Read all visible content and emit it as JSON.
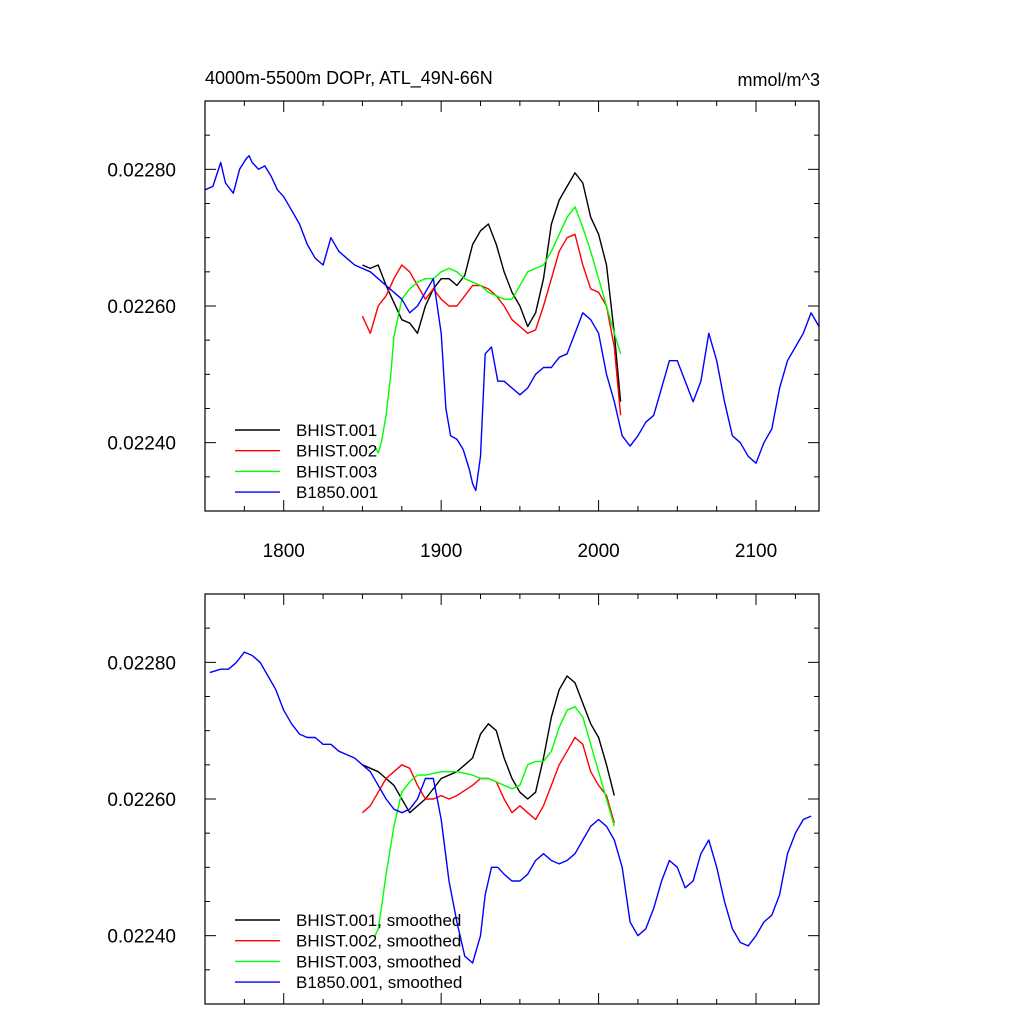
{
  "chart_data": [
    {
      "type": "line",
      "title": "4000m-5500m DOPr, ATL_49N-66N",
      "units": "mmol/m^3",
      "xlim": [
        1750,
        2140
      ],
      "ylim": [
        0.0223,
        0.0229
      ],
      "x_ticks": [
        1800,
        1900,
        2000,
        2100
      ],
      "x_tick_labels": [
        "1800",
        "1900",
        "2000",
        "2100"
      ],
      "y_ticks": [
        0.0224,
        0.0226,
        0.0228
      ],
      "y_tick_labels": [
        "0.02240",
        "0.02260",
        "0.02280"
      ],
      "grid": false,
      "legend_position": "bottom-left",
      "series": [
        {
          "name": "BHIST.001",
          "color": "#000000",
          "x": [
            1850,
            1855,
            1860,
            1865,
            1870,
            1875,
            1880,
            1885,
            1890,
            1895,
            1900,
            1905,
            1910,
            1915,
            1920,
            1925,
            1930,
            1935,
            1940,
            1945,
            1950,
            1955,
            1960,
            1965,
            1970,
            1975,
            1980,
            1985,
            1990,
            1995,
            2000,
            2005,
            2010,
            2014
          ],
          "y": [
            0.02266,
            0.022655,
            0.02266,
            0.02263,
            0.022605,
            0.02258,
            0.022575,
            0.02256,
            0.0226,
            0.022625,
            0.02264,
            0.02264,
            0.02263,
            0.022645,
            0.02269,
            0.02271,
            0.02272,
            0.02269,
            0.02265,
            0.02262,
            0.0226,
            0.02257,
            0.02259,
            0.02264,
            0.02272,
            0.022755,
            0.022775,
            0.022795,
            0.02278,
            0.02273,
            0.022705,
            0.02266,
            0.02256,
            0.02246
          ]
        },
        {
          "name": "BHIST.002",
          "color": "#ff0000",
          "x": [
            1850,
            1855,
            1860,
            1865,
            1870,
            1875,
            1880,
            1885,
            1890,
            1895,
            1900,
            1905,
            1910,
            1915,
            1920,
            1925,
            1930,
            1935,
            1940,
            1945,
            1950,
            1955,
            1960,
            1965,
            1970,
            1975,
            1980,
            1985,
            1990,
            1995,
            2000,
            2005,
            2010,
            2014
          ],
          "y": [
            0.022585,
            0.02256,
            0.0226,
            0.022615,
            0.02264,
            0.02266,
            0.02265,
            0.02263,
            0.02261,
            0.022625,
            0.02261,
            0.0226,
            0.0226,
            0.022615,
            0.02263,
            0.02263,
            0.022625,
            0.022615,
            0.0226,
            0.02258,
            0.02257,
            0.02256,
            0.022565,
            0.0226,
            0.02264,
            0.02268,
            0.0227,
            0.022705,
            0.02266,
            0.022625,
            0.02262,
            0.0226,
            0.02254,
            0.02244
          ]
        },
        {
          "name": "BHIST.003",
          "color": "#00ff00",
          "x": [
            1858,
            1860,
            1862,
            1865,
            1868,
            1870,
            1875,
            1880,
            1885,
            1890,
            1895,
            1900,
            1905,
            1910,
            1915,
            1920,
            1925,
            1930,
            1935,
            1940,
            1945,
            1950,
            1955,
            1960,
            1965,
            1970,
            1975,
            1980,
            1985,
            1990,
            1995,
            2000,
            2005,
            2010,
            2014
          ],
          "y": [
            0.022395,
            0.022385,
            0.0224,
            0.02244,
            0.0225,
            0.022555,
            0.02261,
            0.022625,
            0.022635,
            0.02264,
            0.02264,
            0.02265,
            0.022655,
            0.02265,
            0.02264,
            0.022635,
            0.02263,
            0.02262,
            0.022615,
            0.02261,
            0.02261,
            0.02263,
            0.02265,
            0.022655,
            0.02266,
            0.02268,
            0.022705,
            0.02273,
            0.022745,
            0.022715,
            0.02268,
            0.02264,
            0.0226,
            0.02256,
            0.02253
          ]
        },
        {
          "name": "B1850.001",
          "color": "#0000ff",
          "x": [
            1750,
            1755,
            1760,
            1763,
            1768,
            1772,
            1776,
            1778,
            1780,
            1784,
            1788,
            1792,
            1796,
            1800,
            1805,
            1810,
            1815,
            1820,
            1825,
            1830,
            1835,
            1840,
            1845,
            1850,
            1855,
            1860,
            1865,
            1870,
            1875,
            1880,
            1885,
            1890,
            1895,
            1900,
            1903,
            1906,
            1910,
            1914,
            1918,
            1920,
            1922,
            1925,
            1928,
            1932,
            1936,
            1940,
            1945,
            1950,
            1955,
            1960,
            1965,
            1970,
            1975,
            1980,
            1985,
            1990,
            1995,
            2000,
            2005,
            2010,
            2015,
            2020,
            2025,
            2030,
            2035,
            2040,
            2045,
            2050,
            2055,
            2060,
            2065,
            2070,
            2075,
            2080,
            2085,
            2090,
            2095,
            2100,
            2105,
            2110,
            2115,
            2120,
            2125,
            2130,
            2135,
            2140
          ],
          "y": [
            0.02277,
            0.022775,
            0.02281,
            0.02278,
            0.022765,
            0.0228,
            0.022815,
            0.02282,
            0.02281,
            0.0228,
            0.022805,
            0.02279,
            0.02277,
            0.02276,
            0.02274,
            0.02272,
            0.02269,
            0.02267,
            0.02266,
            0.0227,
            0.02268,
            0.02267,
            0.02266,
            0.022655,
            0.02265,
            0.02264,
            0.02263,
            0.02262,
            0.02261,
            0.02259,
            0.0226,
            0.02262,
            0.02264,
            0.02256,
            0.02245,
            0.02241,
            0.022405,
            0.02239,
            0.02236,
            0.02234,
            0.02233,
            0.02238,
            0.02253,
            0.02254,
            0.02249,
            0.02249,
            0.02248,
            0.02247,
            0.02248,
            0.0225,
            0.02251,
            0.02251,
            0.022525,
            0.02253,
            0.02256,
            0.02259,
            0.02258,
            0.02256,
            0.0225,
            0.02246,
            0.02241,
            0.022395,
            0.02241,
            0.02243,
            0.02244,
            0.02248,
            0.02252,
            0.02252,
            0.02249,
            0.02246,
            0.02249,
            0.02256,
            0.02252,
            0.02246,
            0.02241,
            0.0224,
            0.02238,
            0.02237,
            0.0224,
            0.02242,
            0.02248,
            0.02252,
            0.02254,
            0.02256,
            0.02259,
            0.02257
          ]
        }
      ]
    },
    {
      "type": "line",
      "xlim": [
        1750,
        2140
      ],
      "ylim": [
        0.0223,
        0.0229
      ],
      "x_ticks": [
        1800,
        1900,
        2000,
        2100
      ],
      "y_ticks": [
        0.0224,
        0.0226,
        0.0228
      ],
      "y_tick_labels": [
        "0.02240",
        "0.02260",
        "0.02280"
      ],
      "grid": false,
      "legend_position": "bottom-left",
      "series": [
        {
          "name": "BHIST.001, smoothed",
          "color": "#000000",
          "x": [
            1850,
            1860,
            1870,
            1880,
            1890,
            1900,
            1910,
            1920,
            1925,
            1930,
            1935,
            1940,
            1945,
            1950,
            1955,
            1960,
            1965,
            1970,
            1975,
            1980,
            1985,
            1990,
            1995,
            2000,
            2005,
            2010
          ],
          "y": [
            0.02265,
            0.02264,
            0.02262,
            0.02258,
            0.0226,
            0.02263,
            0.02264,
            0.02266,
            0.022695,
            0.02271,
            0.0227,
            0.02266,
            0.02263,
            0.02261,
            0.0226,
            0.02261,
            0.02266,
            0.02272,
            0.02276,
            0.02278,
            0.02277,
            0.02274,
            0.02271,
            0.02269,
            0.02265,
            0.022605
          ]
        },
        {
          "name": "BHIST.002, smoothed",
          "color": "#ff0000",
          "x": [
            1850,
            1855,
            1860,
            1865,
            1870,
            1875,
            1880,
            1885,
            1890,
            1895,
            1900,
            1905,
            1910,
            1920,
            1925,
            1930,
            1935,
            1940,
            1945,
            1950,
            1955,
            1960,
            1965,
            1970,
            1975,
            1980,
            1985,
            1990,
            1995,
            2000,
            2005,
            2010
          ],
          "y": [
            0.02258,
            0.02259,
            0.02261,
            0.02263,
            0.02264,
            0.02265,
            0.022645,
            0.02262,
            0.0226,
            0.0226,
            0.022605,
            0.0226,
            0.022605,
            0.02262,
            0.02263,
            0.02263,
            0.022625,
            0.0226,
            0.02258,
            0.02259,
            0.02258,
            0.02257,
            0.02259,
            0.02262,
            0.02265,
            0.02267,
            0.02269,
            0.02268,
            0.02264,
            0.02262,
            0.022605,
            0.022565
          ]
        },
        {
          "name": "BHIST.003, smoothed",
          "color": "#00ff00",
          "x": [
            1858,
            1860,
            1862,
            1865,
            1870,
            1875,
            1880,
            1885,
            1890,
            1900,
            1910,
            1920,
            1925,
            1930,
            1935,
            1940,
            1945,
            1950,
            1955,
            1960,
            1965,
            1970,
            1975,
            1980,
            1985,
            1990,
            1995,
            2000,
            2005,
            2010
          ],
          "y": [
            0.0224,
            0.02241,
            0.02244,
            0.02249,
            0.02256,
            0.02261,
            0.022625,
            0.022635,
            0.022635,
            0.02264,
            0.02264,
            0.022635,
            0.02263,
            0.02263,
            0.022625,
            0.02262,
            0.022615,
            0.02262,
            0.02265,
            0.022655,
            0.022655,
            0.02267,
            0.022705,
            0.02273,
            0.022735,
            0.02272,
            0.02268,
            0.02264,
            0.0226,
            0.02256
          ]
        },
        {
          "name": "B1850.001, smoothed",
          "color": "#0000ff",
          "x": [
            1753,
            1760,
            1765,
            1770,
            1775,
            1780,
            1785,
            1790,
            1795,
            1800,
            1805,
            1810,
            1815,
            1820,
            1825,
            1830,
            1835,
            1840,
            1845,
            1850,
            1855,
            1860,
            1865,
            1870,
            1875,
            1880,
            1885,
            1890,
            1895,
            1900,
            1905,
            1910,
            1915,
            1920,
            1925,
            1928,
            1932,
            1936,
            1940,
            1945,
            1950,
            1955,
            1960,
            1965,
            1970,
            1975,
            1980,
            1985,
            1990,
            1995,
            2000,
            2005,
            2010,
            2015,
            2020,
            2025,
            2030,
            2035,
            2040,
            2045,
            2050,
            2055,
            2060,
            2065,
            2070,
            2075,
            2080,
            2085,
            2090,
            2095,
            2100,
            2105,
            2110,
            2115,
            2120,
            2125,
            2130,
            2135
          ],
          "y": [
            0.022785,
            0.02279,
            0.02279,
            0.0228,
            0.022815,
            0.02281,
            0.0228,
            0.02278,
            0.02276,
            0.02273,
            0.02271,
            0.022695,
            0.02269,
            0.02269,
            0.02268,
            0.02268,
            0.02267,
            0.022665,
            0.02266,
            0.02265,
            0.02264,
            0.02262,
            0.0226,
            0.022585,
            0.02258,
            0.022585,
            0.0226,
            0.02263,
            0.02263,
            0.02257,
            0.02248,
            0.02242,
            0.02237,
            0.02236,
            0.0224,
            0.02246,
            0.0225,
            0.0225,
            0.02249,
            0.02248,
            0.02248,
            0.02249,
            0.02251,
            0.02252,
            0.02251,
            0.022505,
            0.02251,
            0.02252,
            0.02254,
            0.02256,
            0.02257,
            0.02256,
            0.02254,
            0.0225,
            0.02242,
            0.0224,
            0.02241,
            0.02244,
            0.02248,
            0.02251,
            0.0225,
            0.02247,
            0.02248,
            0.02252,
            0.02254,
            0.0225,
            0.02245,
            0.02241,
            0.02239,
            0.022385,
            0.0224,
            0.02242,
            0.02243,
            0.02246,
            0.02252,
            0.02255,
            0.02257,
            0.022575
          ]
        }
      ]
    }
  ]
}
